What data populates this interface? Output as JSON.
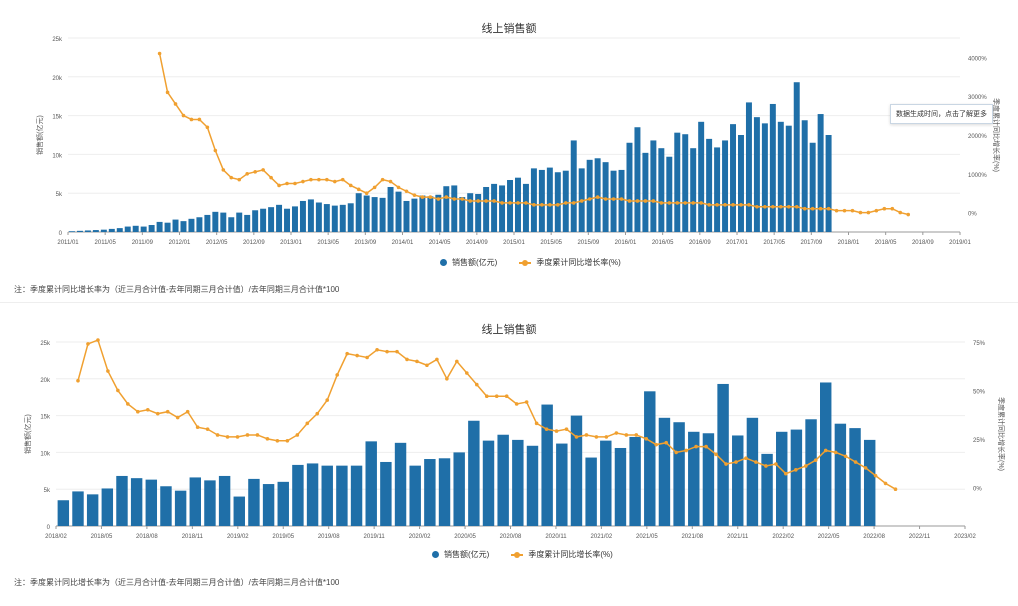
{
  "colors": {
    "bar": "#1f6fa8",
    "line": "#f0a030",
    "axis": "#999999",
    "grid": "#eeeeee",
    "text": "#555555"
  },
  "tooltip": {
    "text": "数据生成时间，点击了解更多"
  },
  "chart_data": [
    {
      "type": "bar",
      "title": "线上销售额",
      "ylabel": "销售额(亿元)",
      "y2label": "季度累计同比增长率(%)",
      "ylim": [
        0,
        25000
      ],
      "y2lim": [
        -500,
        4500
      ],
      "yticks": [
        "0",
        "5k",
        "10k",
        "15k",
        "20k",
        "25k"
      ],
      "y2ticks": [
        "0%",
        "1000%",
        "2000%",
        "3000%",
        "4000%"
      ],
      "legend": [
        "销售额(亿元)",
        "季度累计同比增长率(%)"
      ],
      "note": "注：季度累计同比增长率为（近三月合计值-去年同期三月合计值）/去年同期三月合计值*100",
      "xticks": [
        "2011/01",
        "2011/05",
        "2011/09",
        "2012/01",
        "2012/05",
        "2012/09",
        "2013/01",
        "2013/05",
        "2013/09",
        "2014/01",
        "2014/05",
        "2014/09",
        "2015/01",
        "2015/05",
        "2015/09",
        "2016/01",
        "2016/05",
        "2016/09",
        "2017/01",
        "2017/05",
        "2017/09",
        "2018/01",
        "2018/05",
        "2018/09",
        "2019/01"
      ],
      "bar_values": [
        100,
        150,
        200,
        250,
        300,
        400,
        500,
        700,
        800,
        700,
        900,
        1300,
        1200,
        1600,
        1400,
        1700,
        1900,
        2200,
        2600,
        2500,
        1900,
        2500,
        2200,
        2800,
        3000,
        3200,
        3500,
        3000,
        3300,
        4000,
        4200,
        3800,
        3600,
        3400,
        3500,
        3700,
        5000,
        4700,
        4500,
        4400,
        5800,
        5200,
        4000,
        4300,
        4700,
        4600,
        4800,
        5900,
        6000,
        4500,
        5000,
        4900,
        5800,
        6200,
        6000,
        6700,
        7000,
        6200,
        8200,
        8000,
        8300,
        7700,
        7900,
        11800,
        8200,
        9300,
        9500,
        9000,
        7900,
        8000,
        11500,
        13500,
        10200,
        11800,
        10800,
        9700,
        12800,
        12600,
        10800,
        14200,
        12000,
        10900,
        11800,
        13900,
        12500,
        16700,
        14800,
        14000,
        16500,
        14200,
        13700,
        19300,
        14400,
        11500,
        15200,
        12500
      ],
      "line_x_offset": 11,
      "line_values": [
        4100,
        3100,
        2800,
        2500,
        2400,
        2400,
        2200,
        1600,
        1100,
        900,
        850,
        1000,
        1050,
        1100,
        900,
        700,
        750,
        750,
        800,
        850,
        850,
        850,
        800,
        850,
        700,
        600,
        500,
        650,
        850,
        800,
        650,
        550,
        450,
        400,
        400,
        350,
        400,
        350,
        350,
        300,
        300,
        300,
        300,
        250,
        250,
        250,
        250,
        200,
        200,
        200,
        200,
        250,
        250,
        300,
        350,
        400,
        350,
        350,
        350,
        300,
        300,
        300,
        300,
        250,
        250,
        250,
        250,
        250,
        250,
        200,
        200,
        200,
        200,
        200,
        200,
        150,
        150,
        150,
        150,
        150,
        150,
        100,
        100,
        100,
        100,
        50,
        50,
        50,
        0,
        0,
        50,
        100,
        100,
        0,
        -50
      ]
    },
    {
      "type": "bar",
      "title": "线上销售额",
      "ylabel": "销售额(亿元)",
      "y2label": "季度累计同比增长率(%)",
      "ylim": [
        0,
        25000
      ],
      "y2lim": [
        -20,
        75
      ],
      "yticks": [
        "0",
        "5k",
        "10k",
        "15k",
        "20k",
        "25k"
      ],
      "y2ticks": [
        "0%",
        "25%",
        "50%",
        "75%"
      ],
      "legend": [
        "销售额(亿元)",
        "季度累计同比增长率(%)"
      ],
      "note": "注：季度累计同比增长率为（近三月合计值-去年同期三月合计值）/去年同期三月合计值*100",
      "xticks": [
        "2018/02",
        "2018/05",
        "2018/08",
        "2018/11",
        "2019/02",
        "2019/05",
        "2019/08",
        "2019/11",
        "2020/02",
        "2020/05",
        "2020/08",
        "2020/11",
        "2021/02",
        "2021/05",
        "2021/08",
        "2021/11",
        "2022/02",
        "2022/05",
        "2022/08",
        "2022/11",
        "2023/02"
      ],
      "bar_values": [
        3500,
        4700,
        4300,
        5100,
        6800,
        6500,
        6300,
        5400,
        4800,
        6600,
        6200,
        6800,
        4000,
        6400,
        5700,
        6000,
        8300,
        8500,
        8200,
        8200,
        8200,
        11500,
        8700,
        11300,
        8200,
        9100,
        9200,
        10000,
        14300,
        11600,
        12400,
        11700,
        10900,
        16500,
        11200,
        15000,
        9300,
        11600,
        10600,
        12100,
        18300,
        14700,
        14100,
        12800,
        12600,
        19300,
        12300,
        14700,
        9800,
        12800,
        13100,
        14500,
        19500,
        13900,
        13300,
        11700
      ],
      "line_values": [
        55,
        74,
        76,
        60,
        50,
        43,
        39,
        40,
        38,
        39,
        36,
        39,
        31,
        30,
        27,
        26,
        26,
        27,
        27,
        25,
        24,
        24,
        27,
        33,
        38,
        45,
        58,
        69,
        68,
        67,
        71,
        70,
        70,
        66,
        65,
        63,
        66,
        56,
        65,
        59,
        53,
        47,
        47,
        47,
        43,
        44,
        33,
        30,
        29,
        30,
        26,
        27,
        26,
        26,
        28,
        27,
        27,
        25,
        22,
        23,
        18,
        19,
        21,
        21,
        17,
        12,
        13,
        15,
        13,
        11,
        12,
        7,
        9,
        11,
        14,
        19,
        18,
        16,
        13,
        10,
        6,
        2,
        -1
      ]
    }
  ]
}
